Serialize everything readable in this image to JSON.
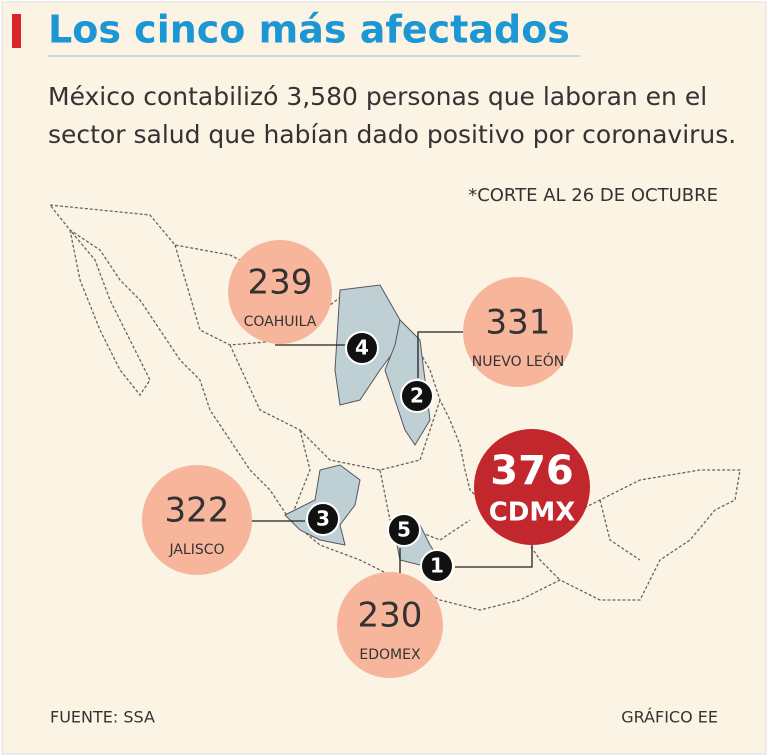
{
  "header": {
    "title": "Los cinco más afectados",
    "subtitle": [
      "México contabilizó 3,580 personas que laboran en el",
      "sector salud que habían dado positivo por coronavirus."
    ],
    "note": "*CORTE AL 26 DE OCTUBRE"
  },
  "states": [
    {
      "rank": 4,
      "value": 239,
      "name": "COAHUILA"
    },
    {
      "rank": 2,
      "value": 331,
      "name": "NUEVO LEÓN"
    },
    {
      "rank": 1,
      "value": 376,
      "name": "CDMX"
    },
    {
      "rank": 3,
      "value": 322,
      "name": "JALISCO"
    },
    {
      "rank": 5,
      "value": 230,
      "name": "EDOMEX"
    }
  ],
  "footer": {
    "source": "FUENTE: SSA",
    "credit": "GRÁFICO EE"
  }
}
